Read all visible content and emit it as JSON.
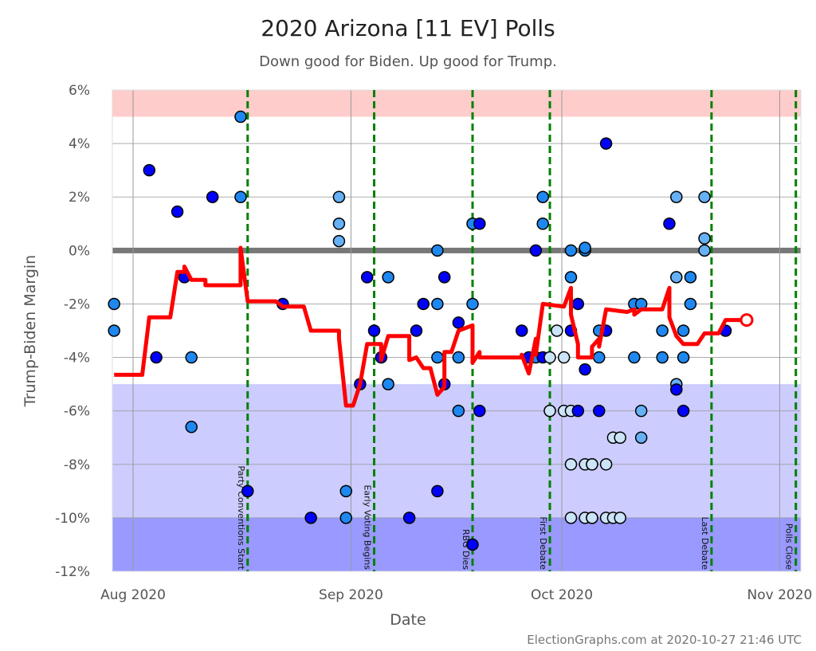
{
  "chart_data": {
    "type": "scatter",
    "title": "2020 Arizona [11 EV] Polls",
    "subtitle": "Down good for Biden. Up good for Trump.",
    "xlabel": "Date",
    "ylabel": "Trump-Biden Margin",
    "xlim": [
      "2020-07-29",
      "2020-11-04"
    ],
    "ylim": [
      -12,
      6
    ],
    "y_ticks": [
      "6%",
      "4%",
      "2%",
      "0%",
      "-2%",
      "-4%",
      "-6%",
      "-8%",
      "-10%",
      "-12%"
    ],
    "y_tick_values": [
      6,
      4,
      2,
      0,
      -2,
      -4,
      -6,
      -8,
      -10,
      -12
    ],
    "x_ticks": [
      {
        "date": "2020-08-01",
        "label": "Aug 2020"
      },
      {
        "date": "2020-09-01",
        "label": "Sep 2020"
      },
      {
        "date": "2020-10-01",
        "label": "Oct 2020"
      },
      {
        "date": "2020-11-01",
        "label": "Nov 2020"
      }
    ],
    "grid": true,
    "bands": [
      {
        "from": 5,
        "to": 6,
        "color": "#ffcccc"
      },
      {
        "from": -10,
        "to": -5,
        "color": "#ccccff"
      },
      {
        "from": -12,
        "to": -10,
        "color": "#9999ff"
      }
    ],
    "shade_colors": {
      "dark": "#0000ff",
      "medium": "#1e88f0",
      "light": "#66b0f5",
      "lightest": "#cce4f8"
    },
    "line_color": "#ff0000",
    "events": [
      {
        "date": "2020-08-17",
        "label": "Party Conventions Start"
      },
      {
        "date": "2020-09-04",
        "label": "Early Voting Begins"
      },
      {
        "date": "2020-09-18",
        "label": "RBG Dies"
      },
      {
        "date": "2020-09-29",
        "label": "First Debate"
      },
      {
        "date": "2020-10-22",
        "label": "Last Debate"
      },
      {
        "date": "2020-11-03",
        "label": "Polls Close"
      }
    ],
    "polls": [
      [
        "2020-07-29",
        -2,
        "medium"
      ],
      [
        "2020-07-29",
        -3,
        "medium"
      ],
      [
        "2020-08-03",
        3,
        "dark"
      ],
      [
        "2020-08-04",
        -4,
        "dark"
      ],
      [
        "2020-08-07",
        1.45,
        "dark"
      ],
      [
        "2020-08-08",
        -1,
        "dark"
      ],
      [
        "2020-08-09",
        -4,
        "medium"
      ],
      [
        "2020-08-09",
        -6.6,
        "medium"
      ],
      [
        "2020-08-12",
        2,
        "dark"
      ],
      [
        "2020-08-16",
        5,
        "medium"
      ],
      [
        "2020-08-16",
        2,
        "medium"
      ],
      [
        "2020-08-17",
        -9,
        "dark"
      ],
      [
        "2020-08-22",
        -2,
        "dark"
      ],
      [
        "2020-08-26",
        -10,
        "dark"
      ],
      [
        "2020-08-30",
        2,
        "light"
      ],
      [
        "2020-08-30",
        1,
        "light"
      ],
      [
        "2020-08-30",
        0.35,
        "light"
      ],
      [
        "2020-08-31",
        -9,
        "medium"
      ],
      [
        "2020-08-31",
        -10,
        "medium"
      ],
      [
        "2020-09-02",
        -5,
        "dark"
      ],
      [
        "2020-09-03",
        -1,
        "dark"
      ],
      [
        "2020-09-04",
        -3,
        "dark"
      ],
      [
        "2020-09-05",
        -4,
        "dark"
      ],
      [
        "2020-09-06",
        -1,
        "medium"
      ],
      [
        "2020-09-06",
        -5,
        "medium"
      ],
      [
        "2020-09-09",
        -10,
        "dark"
      ],
      [
        "2020-09-10",
        -3,
        "dark"
      ],
      [
        "2020-09-11",
        -2,
        "dark"
      ],
      [
        "2020-09-13",
        -9,
        "dark"
      ],
      [
        "2020-09-13",
        0,
        "medium"
      ],
      [
        "2020-09-13",
        -2,
        "medium"
      ],
      [
        "2020-09-13",
        -4,
        "medium"
      ],
      [
        "2020-09-14",
        -5,
        "dark"
      ],
      [
        "2020-09-14",
        -1,
        "dark"
      ],
      [
        "2020-09-16",
        -2.7,
        "dark"
      ],
      [
        "2020-09-16",
        -4,
        "medium"
      ],
      [
        "2020-09-16",
        -6,
        "medium"
      ],
      [
        "2020-09-18",
        -2,
        "medium"
      ],
      [
        "2020-09-18",
        1,
        "medium"
      ],
      [
        "2020-09-18",
        -11,
        "dark"
      ],
      [
        "2020-09-19",
        1,
        "dark"
      ],
      [
        "2020-09-19",
        -6,
        "dark"
      ],
      [
        "2020-09-25",
        -3,
        "dark"
      ],
      [
        "2020-09-26",
        -4,
        "dark"
      ],
      [
        "2020-09-27",
        0,
        "dark"
      ],
      [
        "2020-09-27",
        -4,
        "medium"
      ],
      [
        "2020-09-28",
        1,
        "medium"
      ],
      [
        "2020-09-28",
        2,
        "medium"
      ],
      [
        "2020-09-28",
        -4,
        "dark"
      ],
      [
        "2020-09-29",
        -4,
        "lightest"
      ],
      [
        "2020-09-29",
        -6,
        "lightest"
      ],
      [
        "2020-09-29",
        -6,
        "lightest"
      ],
      [
        "2020-09-30",
        -3,
        "lightest"
      ],
      [
        "2020-10-01",
        -4,
        "lightest"
      ],
      [
        "2020-10-01",
        -6,
        "lightest"
      ],
      [
        "2020-10-02",
        -6,
        "lightest"
      ],
      [
        "2020-10-02",
        0,
        "medium"
      ],
      [
        "2020-10-02",
        -1,
        "medium"
      ],
      [
        "2020-10-02",
        -3,
        "dark"
      ],
      [
        "2020-10-02",
        -8,
        "lightest"
      ],
      [
        "2020-10-02",
        -10,
        "lightest"
      ],
      [
        "2020-10-03",
        -2,
        "dark"
      ],
      [
        "2020-10-03",
        -6,
        "dark"
      ],
      [
        "2020-10-04",
        -8,
        "lightest"
      ],
      [
        "2020-10-04",
        -10,
        "lightest"
      ],
      [
        "2020-10-04",
        0,
        "medium"
      ],
      [
        "2020-10-04",
        0.1,
        "medium"
      ],
      [
        "2020-10-04",
        -4.45,
        "dark"
      ],
      [
        "2020-10-05",
        -8,
        "lightest"
      ],
      [
        "2020-10-05",
        -8,
        "lightest"
      ],
      [
        "2020-10-05",
        -10,
        "lightest"
      ],
      [
        "2020-10-05",
        -10,
        "lightest"
      ],
      [
        "2020-10-06",
        -6,
        "dark"
      ],
      [
        "2020-10-06",
        -3,
        "medium"
      ],
      [
        "2020-10-06",
        -4,
        "medium"
      ],
      [
        "2020-10-07",
        -3,
        "dark"
      ],
      [
        "2020-10-07",
        -8,
        "lightest"
      ],
      [
        "2020-10-07",
        -10,
        "lightest"
      ],
      [
        "2020-10-07",
        4,
        "dark"
      ],
      [
        "2020-10-08",
        -7,
        "lightest"
      ],
      [
        "2020-10-08",
        -10,
        "lightest"
      ],
      [
        "2020-10-09",
        -7,
        "lightest"
      ],
      [
        "2020-10-09",
        -10,
        "lightest"
      ],
      [
        "2020-10-11",
        -2,
        "medium"
      ],
      [
        "2020-10-11",
        -4,
        "medium"
      ],
      [
        "2020-10-12",
        -2,
        "medium"
      ],
      [
        "2020-10-12",
        -6,
        "light"
      ],
      [
        "2020-10-12",
        -7,
        "light"
      ],
      [
        "2020-10-15",
        -3,
        "medium"
      ],
      [
        "2020-10-15",
        -4,
        "medium"
      ],
      [
        "2020-10-16",
        1,
        "dark"
      ],
      [
        "2020-10-17",
        2,
        "light"
      ],
      [
        "2020-10-17",
        -1,
        "light"
      ],
      [
        "2020-10-17",
        -5,
        "light"
      ],
      [
        "2020-10-17",
        -5.2,
        "dark"
      ],
      [
        "2020-10-18",
        -3,
        "medium"
      ],
      [
        "2020-10-18",
        -4,
        "medium"
      ],
      [
        "2020-10-18",
        -6,
        "dark"
      ],
      [
        "2020-10-19",
        -1,
        "medium"
      ],
      [
        "2020-10-19",
        -2,
        "medium"
      ],
      [
        "2020-10-21",
        2,
        "light"
      ],
      [
        "2020-10-21",
        0.45,
        "light"
      ],
      [
        "2020-10-21",
        0,
        "light"
      ],
      [
        "2020-10-24",
        -3,
        "dark"
      ]
    ],
    "average": [
      [
        "2020-07-29",
        -4.65
      ],
      [
        "2020-08-02",
        -4.65
      ],
      [
        "2020-08-03",
        -2.5
      ],
      [
        "2020-08-06",
        -2.5
      ],
      [
        "2020-08-07",
        -0.8
      ],
      [
        "2020-08-08",
        -0.8
      ],
      [
        "2020-08-08",
        -0.6
      ],
      [
        "2020-08-09",
        -1.1
      ],
      [
        "2020-08-11",
        -1.1
      ],
      [
        "2020-08-11",
        -1.3
      ],
      [
        "2020-08-16",
        -1.3
      ],
      [
        "2020-08-16",
        0.1
      ],
      [
        "2020-08-17",
        -1.9
      ],
      [
        "2020-08-21",
        -1.9
      ],
      [
        "2020-08-22",
        -2.1
      ],
      [
        "2020-08-25",
        -2.1
      ],
      [
        "2020-08-26",
        -3.0
      ],
      [
        "2020-08-30",
        -3.0
      ],
      [
        "2020-08-30",
        -3.3
      ],
      [
        "2020-08-31",
        -5.8
      ],
      [
        "2020-09-01",
        -5.8
      ],
      [
        "2020-09-02",
        -5.0
      ],
      [
        "2020-09-03",
        -3.5
      ],
      [
        "2020-09-05",
        -3.5
      ],
      [
        "2020-09-05",
        -4.1
      ],
      [
        "2020-09-06",
        -3.2
      ],
      [
        "2020-09-09",
        -3.2
      ],
      [
        "2020-09-09",
        -4.1
      ],
      [
        "2020-09-10",
        -4.0
      ],
      [
        "2020-09-11",
        -4.4
      ],
      [
        "2020-09-12",
        -4.4
      ],
      [
        "2020-09-13",
        -5.4
      ],
      [
        "2020-09-14",
        -5.1
      ],
      [
        "2020-09-14",
        -3.8
      ],
      [
        "2020-09-15",
        -3.8
      ],
      [
        "2020-09-16",
        -3.0
      ],
      [
        "2020-09-18",
        -2.8
      ],
      [
        "2020-09-18",
        -4.2
      ],
      [
        "2020-09-19",
        -3.8
      ],
      [
        "2020-09-19",
        -4.0
      ],
      [
        "2020-09-25",
        -4.0
      ],
      [
        "2020-09-25",
        -3.9
      ],
      [
        "2020-09-26",
        -4.6
      ],
      [
        "2020-09-26",
        -4.6
      ],
      [
        "2020-09-27",
        -3.3
      ],
      [
        "2020-09-27",
        -3.9
      ],
      [
        "2020-09-28",
        -2.0
      ],
      [
        "2020-10-01",
        -2.1
      ],
      [
        "2020-10-02",
        -1.4
      ],
      [
        "2020-10-02",
        -2.4
      ],
      [
        "2020-10-03",
        -3.5
      ],
      [
        "2020-10-03",
        -4.0
      ],
      [
        "2020-10-05",
        -4.0
      ],
      [
        "2020-10-05",
        -3.6
      ],
      [
        "2020-10-06",
        -3.3
      ],
      [
        "2020-10-06",
        -3.6
      ],
      [
        "2020-10-07",
        -2.2
      ],
      [
        "2020-10-10",
        -2.3
      ],
      [
        "2020-10-11",
        -2.2
      ],
      [
        "2020-10-11",
        -2.4
      ],
      [
        "2020-10-12",
        -2.2
      ],
      [
        "2020-10-15",
        -2.2
      ],
      [
        "2020-10-16",
        -1.4
      ],
      [
        "2020-10-16",
        -2.5
      ],
      [
        "2020-10-17",
        -3.2
      ],
      [
        "2020-10-18",
        -3.5
      ],
      [
        "2020-10-20",
        -3.5
      ],
      [
        "2020-10-21",
        -3.1
      ],
      [
        "2020-10-23",
        -3.1
      ],
      [
        "2020-10-24",
        -2.6
      ],
      [
        "2020-10-27",
        -2.6
      ]
    ]
  },
  "footer": "ElectionGraphs.com at 2020-10-27 21:46 UTC"
}
